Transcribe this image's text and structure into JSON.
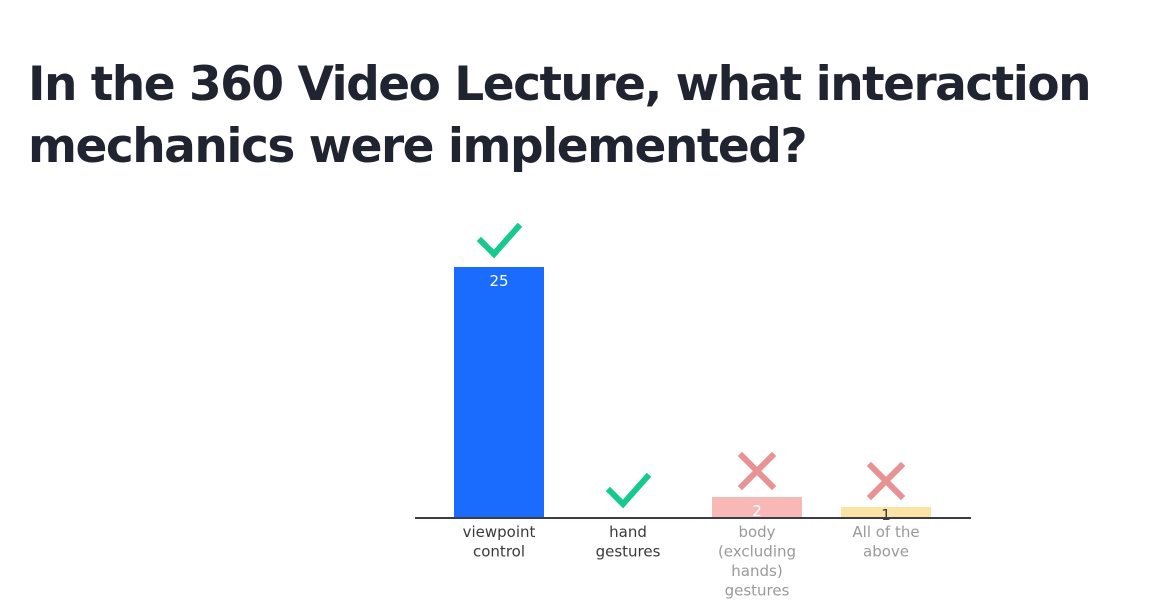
{
  "question": {
    "title": "In the 360 Video Lecture, what interaction mechanics were implemented?"
  },
  "chart_data": {
    "type": "bar",
    "categories": [
      "viewpoint control",
      "hand gestures",
      "body (excluding hands) gestures",
      "All of the above"
    ],
    "category_label_lines": [
      [
        "viewpoint",
        "control"
      ],
      [
        "hand",
        "gestures"
      ],
      [
        "body",
        "(excluding",
        "hands)",
        "gestures"
      ],
      [
        "All of the",
        "above"
      ]
    ],
    "values": [
      25,
      0,
      2,
      1
    ],
    "value_labels": [
      "25",
      "",
      "2",
      "1"
    ],
    "correct": [
      true,
      true,
      false,
      false
    ],
    "bar_colors": [
      "#1a6cff",
      "#1a6cff",
      "#f7b8b6",
      "#fbe3a6"
    ],
    "marker_colors": {
      "correct": "#16c98d",
      "incorrect": "#e89294"
    },
    "label_colors": {
      "correct": "#3a3a3a",
      "incorrect": "#9a9a9a"
    },
    "axis_color": "#3a3d45",
    "ylim": [
      0,
      25
    ],
    "grid": false,
    "legend": "none",
    "title": "In the 360 Video Lecture, what interaction mechanics were implemented?",
    "xlabel": "",
    "ylabel": ""
  }
}
